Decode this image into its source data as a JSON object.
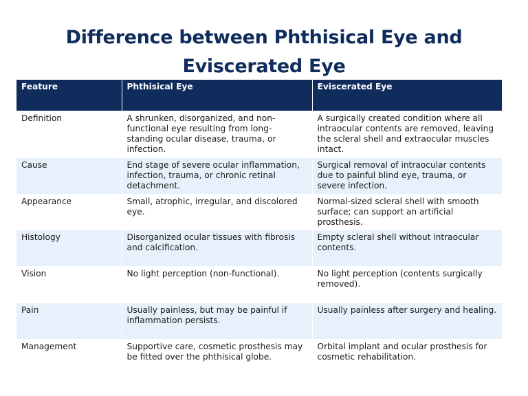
{
  "title": {
    "line1": "Difference between Phthisical Eye and",
    "line2": "Eviscerated Eye"
  },
  "table": {
    "headers": [
      "Feature",
      "Phthisical Eye",
      "Eviscerated Eye"
    ],
    "rows": [
      [
        "Definition",
        "A shrunken, disorganized, and non-functional eye resulting from long-standing ocular disease, trauma, or infection.",
        "A surgically created condition where all intraocular contents are removed, leaving the scleral shell and extraocular muscles intact."
      ],
      [
        "Cause",
        "End stage of severe ocular inflammation, infection, trauma, or chronic retinal detachment.",
        "Surgical removal of intraocular contents due to painful blind eye, trauma, or severe infection."
      ],
      [
        "Appearance",
        "Small, atrophic, irregular, and discolored eye.",
        "Normal-sized scleral shell with smooth surface; can support an artificial prosthesis."
      ],
      [
        "Histology",
        "Disorganized ocular tissues with fibrosis and calcification.",
        "Empty scleral shell without intraocular contents."
      ],
      [
        "Vision",
        "No light perception (non-functional).",
        "No light perception (contents surgically removed)."
      ],
      [
        "Pain",
        "Usually painless, but may be painful if inflammation persists.",
        "Usually painless after surgery and healing."
      ],
      [
        "Management",
        "Supportive care, cosmetic prosthesis may be fitted over the phthisical globe.",
        "Orbital implant and ocular prosthesis for cosmetic rehabilitation."
      ]
    ]
  },
  "colors": {
    "header_bg": "#0f2c5c",
    "title_text": "#0f2c5c",
    "stripe": "#e8f1fb"
  }
}
